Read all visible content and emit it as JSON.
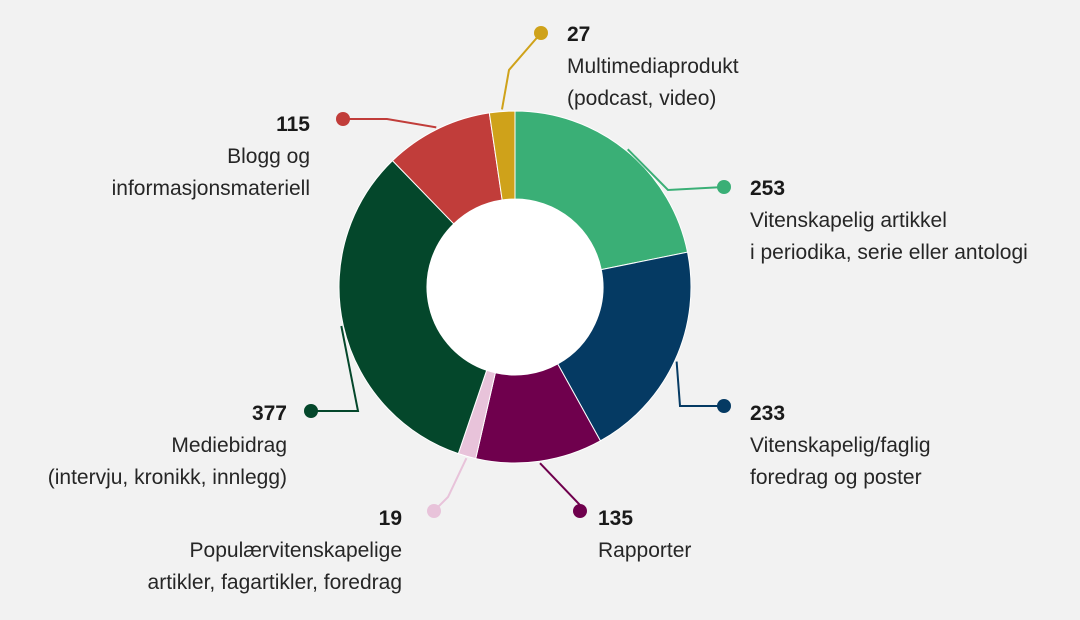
{
  "chart_data": {
    "type": "pie",
    "variant": "donut",
    "slices": [
      {
        "value": 253,
        "label_lines": [
          "Vitenskapelig artikkel",
          "i periodika, serie eller antologi"
        ],
        "color": "#3aaf76"
      },
      {
        "value": 233,
        "label_lines": [
          "Vitenskapelig/faglig",
          "foredrag og poster"
        ],
        "color": "#053a63"
      },
      {
        "value": 135,
        "label_lines": [
          "Rapporter"
        ],
        "color": "#6f004d"
      },
      {
        "value": 19,
        "label_lines": [
          "Populærvitenskapelige",
          "artikler, fagartikler, foredrag"
        ],
        "color": "#e8c3da"
      },
      {
        "value": 377,
        "label_lines": [
          "Mediebidrag",
          "(intervju, kronikk, innlegg)"
        ],
        "color": "#04472b"
      },
      {
        "value": 115,
        "label_lines": [
          "Blogg og",
          "informasjonsmateriell"
        ],
        "color": "#c13d3a"
      },
      {
        "value": 27,
        "label_lines": [
          "Multimediaprodukt",
          "(podcast, video)"
        ],
        "color": "#cfa21a"
      }
    ]
  }
}
